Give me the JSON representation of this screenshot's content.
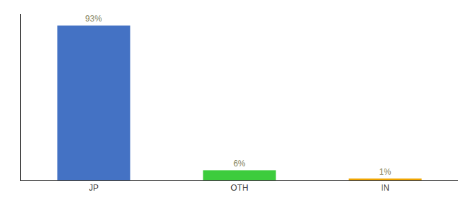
{
  "chart_data": {
    "type": "bar",
    "categories": [
      "JP",
      "OTH",
      "IN"
    ],
    "values": [
      93,
      6,
      1
    ],
    "value_labels": [
      "93%",
      "6%",
      "1%"
    ],
    "colors": [
      "#4472c4",
      "#3dcc3d",
      "#f0a500"
    ],
    "ylim": [
      0,
      100
    ],
    "grid": false,
    "data_labels": true,
    "tick_labels": "x"
  }
}
